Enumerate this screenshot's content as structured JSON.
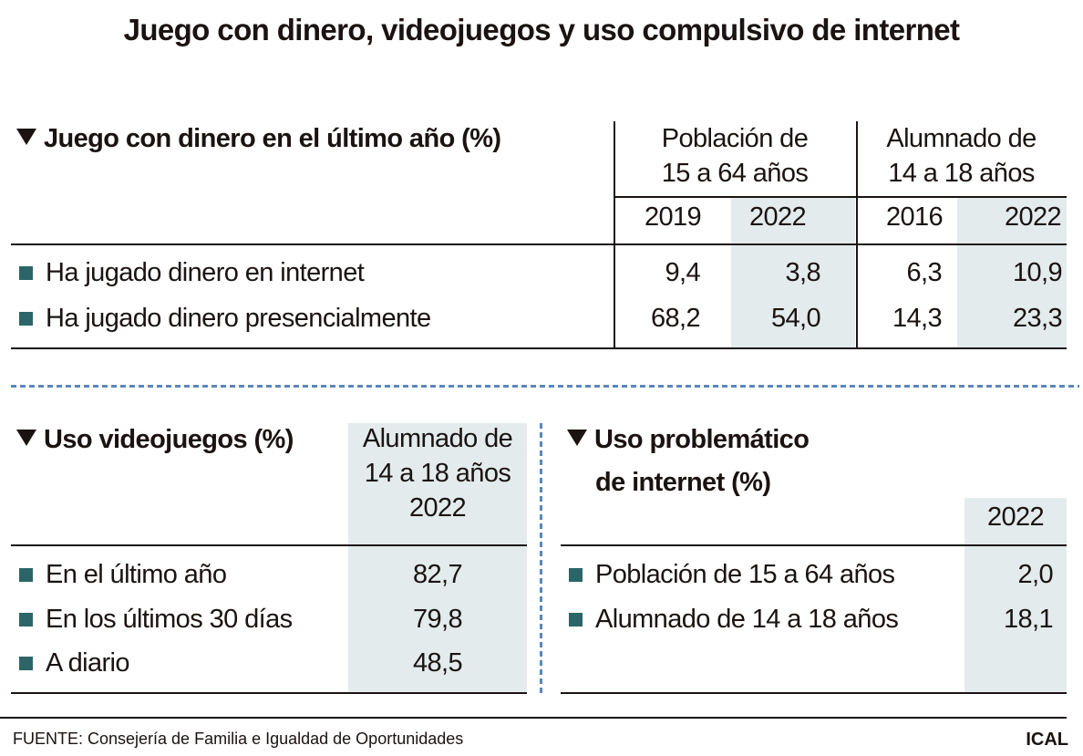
{
  "title": "Juego con dinero, videojuegos y uso compulsivo de internet",
  "colors": {
    "bullet": "#2b6567",
    "shade": "#e3ebec",
    "divider": "#5b87b8",
    "text": "#1a1311"
  },
  "icons": {
    "heading": "triangle-down-icon",
    "bullet": "square-bullet-icon"
  },
  "gambling": {
    "heading": "Juego con dinero en el último año (%)",
    "group1": {
      "line1": "Población de",
      "line2": "15 a 64 años"
    },
    "group2": {
      "line1": "Alumnado de",
      "line2": "14 a 18 años"
    },
    "years": [
      "2019",
      "2022",
      "2016",
      "2022"
    ],
    "rows": [
      {
        "label": "Ha jugado dinero en internet",
        "values": [
          "9,4",
          "3,8",
          "6,3",
          "10,9"
        ]
      },
      {
        "label": "Ha jugado dinero presencialmente",
        "values": [
          "68,2",
          "54,0",
          "14,3",
          "23,3"
        ]
      }
    ]
  },
  "videogames": {
    "heading": "Uso videojuegos (%)",
    "col": {
      "line1": "Alumnado de",
      "line2": "14 a 18 años",
      "line3": "2022"
    },
    "rows": [
      {
        "label": "En el último año",
        "value": "82,7"
      },
      {
        "label": "En los últimos 30 días",
        "value": "79,8"
      },
      {
        "label": "A diario",
        "value": "48,5"
      }
    ]
  },
  "internet": {
    "heading_line1": "Uso problemático",
    "heading_line2": "de internet (%)",
    "year": "2022",
    "rows": [
      {
        "label": "Población de 15 a 64 años",
        "value": "2,0"
      },
      {
        "label": "Alumnado de 14 a 18 años",
        "value": "18,1"
      }
    ]
  },
  "footer": {
    "source": "FUENTE: Consejería de Familia e Igualdad de Oportunidades",
    "brand": "ICAL"
  },
  "chart_data": [
    {
      "type": "table",
      "title": "Juego con dinero en el último año (%)",
      "columns": [
        "Población de 15 a 64 años 2019",
        "Población de 15 a 64 años 2022",
        "Alumnado de 14 a 18 años 2016",
        "Alumnado de 14 a 18 años 2022"
      ],
      "rows": [
        {
          "label": "Ha jugado dinero en internet",
          "values": [
            9.4,
            3.8,
            6.3,
            10.9
          ]
        },
        {
          "label": "Ha jugado dinero presencialmente",
          "values": [
            68.2,
            54.0,
            14.3,
            23.3
          ]
        }
      ]
    },
    {
      "type": "table",
      "title": "Uso videojuegos (%)",
      "columns": [
        "Alumnado de 14 a 18 años 2022"
      ],
      "rows": [
        {
          "label": "En el último año",
          "values": [
            82.7
          ]
        },
        {
          "label": "En los últimos 30 días",
          "values": [
            79.8
          ]
        },
        {
          "label": "A diario",
          "values": [
            48.5
          ]
        }
      ]
    },
    {
      "type": "table",
      "title": "Uso problemático de internet (%)",
      "columns": [
        "2022"
      ],
      "rows": [
        {
          "label": "Población de 15 a 64 años",
          "values": [
            2.0
          ]
        },
        {
          "label": "Alumnado de 14 a 18 años",
          "values": [
            18.1
          ]
        }
      ]
    }
  ]
}
